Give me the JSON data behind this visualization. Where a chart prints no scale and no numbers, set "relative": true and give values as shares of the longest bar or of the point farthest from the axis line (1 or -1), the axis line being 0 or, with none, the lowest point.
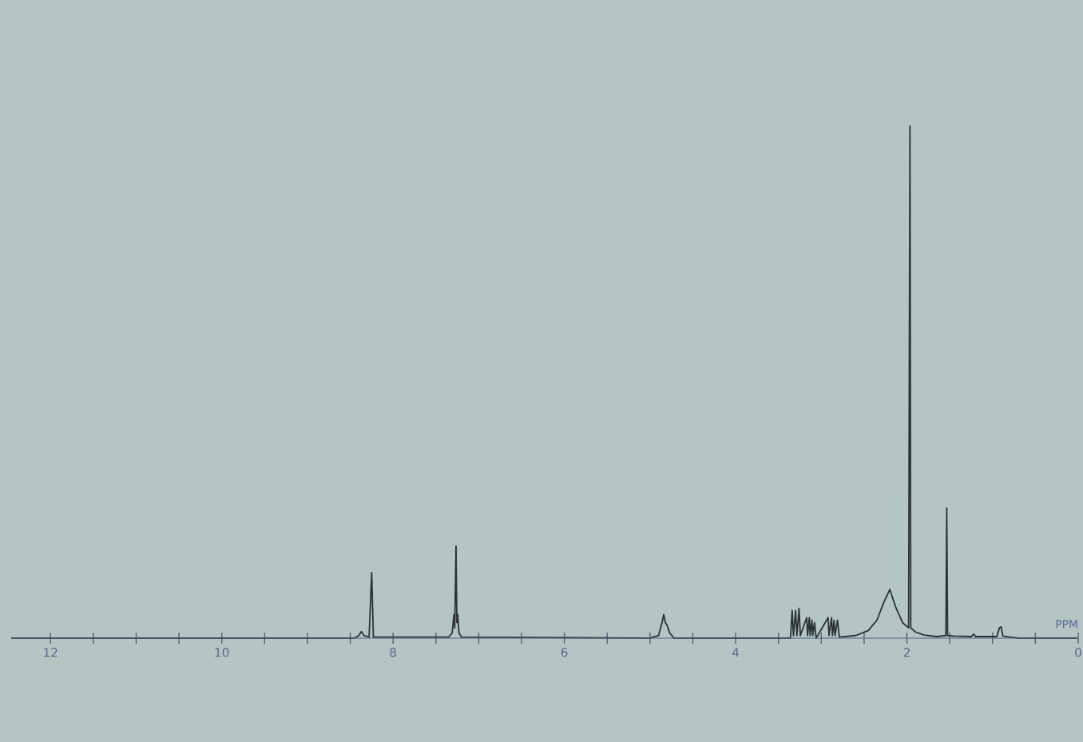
{
  "chart_data": {
    "type": "line",
    "xlabel": "PPM",
    "relative": true,
    "color": "#2b3232",
    "grid": false,
    "legend": false,
    "marker": "none",
    "line_style": "solid",
    "xlim": [
      12.45,
      0
    ],
    "xticks": [
      12,
      {
        "value": 11.5,
        "label": null
      },
      {
        "value": 11,
        "label": null
      },
      {
        "value": 10.5,
        "label": null
      },
      10,
      {
        "value": 9.5,
        "label": null
      },
      {
        "value": 9,
        "label": null
      },
      {
        "value": 8.5,
        "label": null
      },
      8,
      {
        "value": 7.5,
        "label": null
      },
      {
        "value": 7,
        "label": null
      },
      {
        "value": 6.5,
        "label": null
      },
      6,
      {
        "value": 5.5,
        "label": null
      },
      {
        "value": 5,
        "label": null
      },
      {
        "value": 4.5,
        "label": null
      },
      4,
      {
        "value": 3.5,
        "label": null
      },
      {
        "value": 3,
        "label": null
      },
      {
        "value": 2.5,
        "label": null
      },
      2,
      {
        "value": 1.5,
        "label": null
      },
      {
        "value": 1,
        "label": null
      },
      {
        "value": 0.5,
        "label": null
      },
      0
    ],
    "x": [
      12.45,
      8.45,
      8.4,
      8.37,
      8.34,
      8.28,
      8.25,
      8.23,
      7.35,
      7.31,
      7.29,
      7.28,
      7.265,
      7.255,
      7.245,
      7.23,
      7.2,
      5.0,
      4.9,
      4.86,
      4.84,
      4.82,
      4.8,
      4.77,
      4.72,
      3.36,
      3.34,
      3.325,
      3.3,
      3.285,
      3.26,
      3.245,
      3.17,
      3.16,
      3.14,
      3.13,
      3.11,
      3.1,
      3.08,
      3.06,
      2.92,
      2.91,
      2.88,
      2.87,
      2.85,
      2.84,
      2.81,
      2.79,
      2.6,
      2.45,
      2.35,
      2.27,
      2.2,
      2.13,
      2.05,
      1.98,
      1.965,
      1.955,
      1.9,
      1.8,
      1.65,
      1.545,
      1.535,
      1.525,
      1.45,
      1.25,
      1.22,
      1.2,
      0.95,
      0.92,
      0.9,
      0.88,
      0.7,
      0.02
    ],
    "values": [
      0,
      0,
      0.005,
      0.013,
      0.005,
      0.002,
      0.128,
      0.002,
      0.002,
      0.01,
      0.046,
      0.02,
      0.18,
      0.03,
      0.046,
      0.01,
      0.002,
      0,
      0.005,
      0.03,
      0.046,
      0.03,
      0.025,
      0.01,
      0,
      0,
      0.054,
      0.005,
      0.054,
      0.005,
      0.058,
      0.005,
      0.04,
      0.005,
      0.04,
      0.005,
      0.035,
      0.005,
      0.03,
      0,
      0.04,
      0.005,
      0.04,
      0.005,
      0.035,
      0.005,
      0.035,
      0.002,
      0.005,
      0.015,
      0.035,
      0.07,
      0.095,
      0.06,
      0.03,
      0.02,
      1.0,
      0.02,
      0.012,
      0.006,
      0.003,
      0.005,
      0.254,
      0.005,
      0.004,
      0.003,
      0.008,
      0.003,
      0.003,
      0.02,
      0.022,
      0.004,
      0,
      0
    ]
  }
}
